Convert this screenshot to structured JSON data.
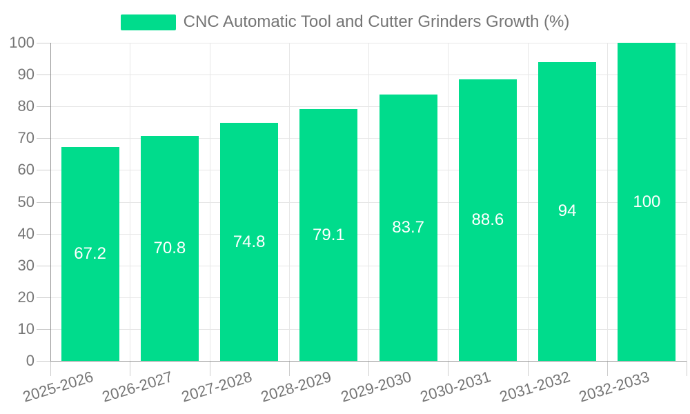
{
  "chart_data": {
    "type": "bar",
    "title": "CNC Automatic Tool and Cutter Grinders Growth (%)",
    "categories": [
      "2025-2026",
      "2026-2027",
      "2027-2028",
      "2028-2029",
      "2029-2030",
      "2030-2031",
      "2031-2032",
      "2032-2033"
    ],
    "series": [
      {
        "name": "CNC Automatic Tool and Cutter Grinders Growth (%)",
        "values": [
          67.2,
          70.8,
          74.8,
          79.1,
          83.7,
          88.6,
          94,
          100
        ],
        "value_labels": [
          "67.2",
          "70.8",
          "74.8",
          "79.1",
          "83.7",
          "88.6",
          "94",
          "100"
        ]
      }
    ],
    "xlabel": "",
    "ylabel": "",
    "ylim": [
      0,
      100
    ],
    "yticks": [
      0,
      10,
      20,
      30,
      40,
      50,
      60,
      70,
      80,
      90,
      100
    ],
    "grid": true,
    "legend_position": "top-center",
    "x_label_rotation_deg": -17,
    "colors": {
      "bar": "#00dc8c",
      "bar_value_text": "#ffffff",
      "axis_text": "#757575",
      "legend_text": "#757575",
      "axis_line": "#999999",
      "gridline": "#e6e6e6",
      "tick": "#cccccc",
      "background": "#ffffff"
    }
  }
}
